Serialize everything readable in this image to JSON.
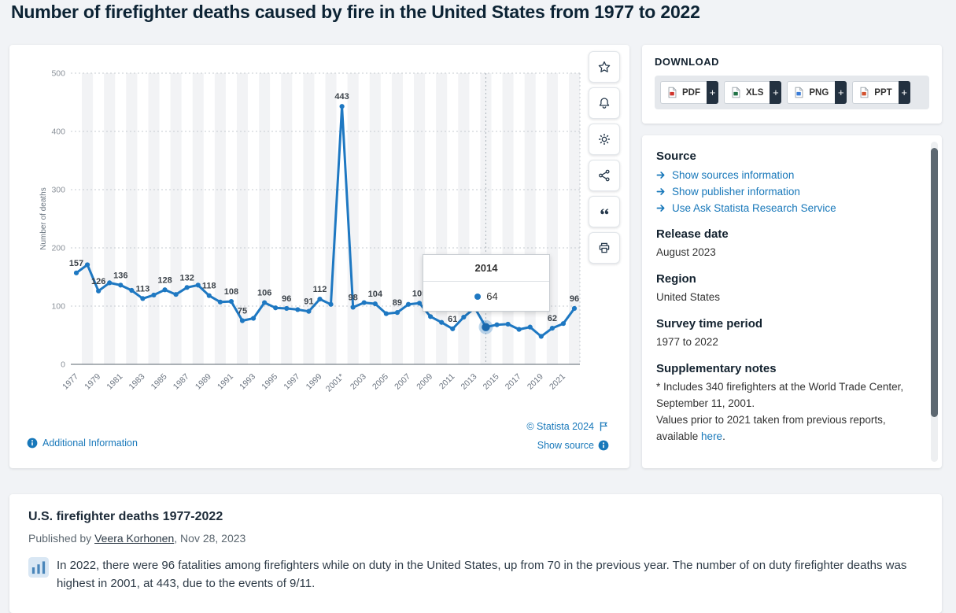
{
  "page_title": "Number of firefighter deaths caused by fire in the United States from 1977 to 2022",
  "colors": {
    "line_blue": "#1e78c2",
    "link_blue": "#1878ba",
    "dark_navy": "#13222f"
  },
  "toolbar": {
    "buttons": [
      "star",
      "bell",
      "gear",
      "share",
      "quote",
      "printer"
    ]
  },
  "download": {
    "title": "DOWNLOAD",
    "plus_label": "+",
    "buttons": [
      {
        "label": "PDF",
        "color": "#d0342c"
      },
      {
        "label": "XLS",
        "color": "#217346"
      },
      {
        "label": "PNG",
        "color": "#3b7dd8"
      },
      {
        "label": "PPT",
        "color": "#d35230"
      }
    ]
  },
  "info_panel": {
    "source_title": "Source",
    "source_links": [
      "Show sources information",
      "Show publisher information",
      "Use Ask Statista Research Service"
    ],
    "sections": [
      {
        "title": "Release date",
        "text": "August 2023"
      },
      {
        "title": "Region",
        "text": "United States"
      },
      {
        "title": "Survey time period",
        "text": "1977 to 2022"
      }
    ],
    "supplementary": {
      "title": "Supplementary notes",
      "note1": "* Includes 340 firefighters at the World Trade Center, September 11, 2001.",
      "note2_prefix": "Values prior to 2021 taken from previous reports, available ",
      "note2_link": "here",
      "note2_suffix": "."
    }
  },
  "chart_footer": {
    "additional_information": "Additional Information",
    "copyright": "© Statista 2024",
    "show_source": "Show source"
  },
  "chart_data": {
    "type": "line",
    "title": "Number of firefighter deaths caused by fire in the United States from 1977 to 2022",
    "ylabel": "Number of deaths",
    "xlabel": "",
    "ylim": [
      0,
      500
    ],
    "yticks": [
      0,
      100,
      200,
      300,
      400,
      500
    ],
    "grid": "horizontal-dotted",
    "legend": "none",
    "line_color": "#1e78c2",
    "x": [
      1977,
      1978,
      1979,
      1980,
      1981,
      1982,
      1983,
      1984,
      1985,
      1986,
      1987,
      1988,
      1989,
      1990,
      1991,
      1992,
      1993,
      1994,
      1995,
      1996,
      1997,
      1998,
      1999,
      2000,
      2001,
      2002,
      2003,
      2004,
      2005,
      2006,
      2007,
      2008,
      2009,
      2010,
      2011,
      2012,
      2013,
      2014,
      2015,
      2016,
      2017,
      2018,
      2019,
      2020,
      2021,
      2022
    ],
    "values": [
      157,
      171,
      126,
      140,
      136,
      127,
      113,
      119,
      128,
      120,
      132,
      136,
      118,
      107,
      108,
      75,
      79,
      106,
      97,
      96,
      94,
      91,
      112,
      103,
      443,
      98,
      106,
      104,
      87,
      89,
      103,
      105,
      82,
      72,
      61,
      81,
      97,
      64,
      68,
      69,
      60,
      64,
      48,
      62,
      70,
      96
    ],
    "xtick_labels": [
      "1977",
      "1979",
      "1981",
      "1983",
      "1985",
      "1987",
      "1989",
      "1991",
      "1993",
      "1995",
      "1997",
      "1999",
      "2001*",
      "2003",
      "2005",
      "2007",
      "2009",
      "2011",
      "2013",
      "2015",
      "2017",
      "2019",
      "2021"
    ],
    "point_labels": [
      {
        "year": 1977,
        "value": 157
      },
      {
        "year": 1979,
        "value": 126
      },
      {
        "year": 1981,
        "value": 136
      },
      {
        "year": 1983,
        "value": 113
      },
      {
        "year": 1985,
        "value": 128
      },
      {
        "year": 1987,
        "value": 132
      },
      {
        "year": 1989,
        "value": 118
      },
      {
        "year": 1991,
        "value": 108
      },
      {
        "year": 1992,
        "value": 75
      },
      {
        "year": 1994,
        "value": 106
      },
      {
        "year": 1996,
        "value": 96
      },
      {
        "year": 1998,
        "value": 91
      },
      {
        "year": 1999,
        "value": 112
      },
      {
        "year": 2001,
        "value": 443
      },
      {
        "year": 2002,
        "value": 98
      },
      {
        "year": 2004,
        "value": 104
      },
      {
        "year": 2006,
        "value": 89
      },
      {
        "year": 2008,
        "value": 105
      },
      {
        "year": 2011,
        "value": 61
      },
      {
        "year": 2020,
        "value": 62
      },
      {
        "year": 2022,
        "value": 96
      }
    ],
    "selected_point": {
      "year": 2014,
      "value": 64
    },
    "tooltip": {
      "title": "2014",
      "value": "64"
    }
  },
  "article": {
    "title": "U.S. firefighter deaths 1977-2022",
    "published_prefix": "Published by ",
    "author": "Veera Korhonen",
    "published_suffix": ", Nov 28, 2023",
    "description": "In 2022, there were 96 fatalities among firefighters while on duty in the United States, up from 70 in the previous year. The number of on duty firefighter deaths was highest in 2001, at 443, due to the events of 9/11."
  }
}
